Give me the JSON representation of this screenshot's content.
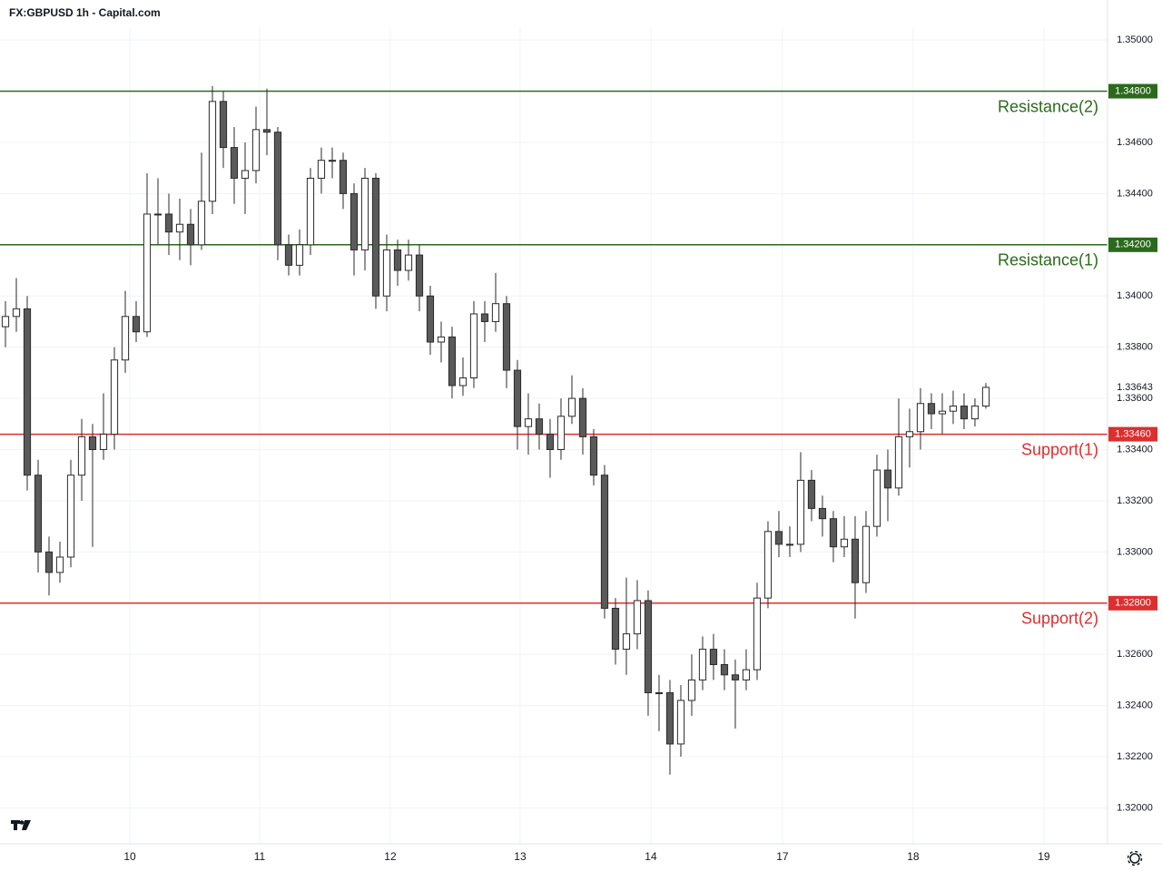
{
  "chart_data": {
    "type": "candlestick",
    "title": "FX:GBPUSD 1h - Capital.com",
    "up_color": "#ffffff",
    "down_color": "#5a5a5a",
    "wick_color": "#2a2a2a",
    "grid": true,
    "open": [
      1.3388,
      1.3392,
      1.3395,
      1.333,
      1.33,
      1.3292,
      1.3298,
      1.333,
      1.3345,
      1.334,
      1.3346,
      1.3375,
      1.3392,
      1.3386,
      1.3432,
      1.3432,
      1.3425,
      1.3428,
      1.342,
      1.3437,
      1.3476,
      1.3458,
      1.3446,
      1.3449,
      1.3465,
      1.3464,
      1.342,
      1.3412,
      1.342,
      1.3446,
      1.3453,
      1.3453,
      1.344,
      1.3418,
      1.3446,
      1.34,
      1.3418,
      1.341,
      1.3416,
      1.34,
      1.3382,
      1.3384,
      1.3365,
      1.3368,
      1.3393,
      1.339,
      1.3397,
      1.3371,
      1.3349,
      1.3352,
      1.3346,
      1.334,
      1.3353,
      1.336,
      1.3345,
      1.333,
      1.3278,
      1.3262,
      1.3268,
      1.3281,
      1.3245,
      1.3245,
      1.3225,
      1.3242,
      1.325,
      1.3262,
      1.3256,
      1.3252,
      1.325,
      1.3254,
      1.3282,
      1.3308,
      1.3303,
      1.3303,
      1.3328,
      1.3317,
      1.3313,
      1.3302,
      1.3305,
      1.3288,
      1.331,
      1.3332,
      1.3325,
      1.3345,
      1.3347,
      1.3358,
      1.3354,
      1.3355,
      1.3357,
      1.3352,
      1.3357
    ],
    "high": [
      1.3398,
      1.3407,
      1.34,
      1.3336,
      1.3306,
      1.3304,
      1.3336,
      1.3352,
      1.335,
      1.3362,
      1.338,
      1.3402,
      1.3398,
      1.3448,
      1.3446,
      1.344,
      1.3438,
      1.3434,
      1.3456,
      1.3482,
      1.348,
      1.3466,
      1.346,
      1.3474,
      1.3481,
      1.3466,
      1.3424,
      1.3426,
      1.345,
      1.3458,
      1.3458,
      1.3456,
      1.3444,
      1.345,
      1.3448,
      1.3424,
      1.3422,
      1.3422,
      1.342,
      1.3404,
      1.339,
      1.3388,
      1.3376,
      1.3398,
      1.3398,
      1.3409,
      1.34,
      1.3375,
      1.3362,
      1.3358,
      1.3352,
      1.336,
      1.3369,
      1.3364,
      1.3348,
      1.3334,
      1.3282,
      1.329,
      1.3289,
      1.3285,
      1.3252,
      1.325,
      1.3248,
      1.326,
      1.3267,
      1.3268,
      1.3262,
      1.3258,
      1.3262,
      1.3288,
      1.3312,
      1.3316,
      1.331,
      1.3339,
      1.3332,
      1.3322,
      1.3316,
      1.3314,
      1.3314,
      1.3316,
      1.3338,
      1.334,
      1.336,
      1.3356,
      1.3364,
      1.3362,
      1.3362,
      1.3363,
      1.3362,
      1.336,
      1.3366
    ],
    "low": [
      1.338,
      1.3386,
      1.3324,
      1.3292,
      1.3283,
      1.3288,
      1.3294,
      1.332,
      1.3302,
      1.3336,
      1.334,
      1.337,
      1.3382,
      1.3384,
      1.342,
      1.3416,
      1.3414,
      1.3412,
      1.3418,
      1.3432,
      1.345,
      1.3436,
      1.3432,
      1.3444,
      1.3455,
      1.3414,
      1.3408,
      1.3408,
      1.3416,
      1.344,
      1.3446,
      1.3434,
      1.3408,
      1.341,
      1.3395,
      1.3394,
      1.3404,
      1.3406,
      1.3394,
      1.3377,
      1.3374,
      1.336,
      1.3361,
      1.3364,
      1.3382,
      1.3386,
      1.3364,
      1.334,
      1.3338,
      1.334,
      1.3329,
      1.3336,
      1.335,
      1.3338,
      1.3326,
      1.3274,
      1.3256,
      1.3252,
      1.3262,
      1.3236,
      1.323,
      1.3213,
      1.322,
      1.3236,
      1.3246,
      1.325,
      1.3246,
      1.3231,
      1.3246,
      1.325,
      1.3278,
      1.3298,
      1.3298,
      1.33,
      1.3312,
      1.3306,
      1.3296,
      1.3298,
      1.3274,
      1.3284,
      1.3306,
      1.3312,
      1.3322,
      1.3333,
      1.334,
      1.3348,
      1.3346,
      1.335,
      1.3348,
      1.3349,
      1.3356
    ],
    "close": [
      1.3392,
      1.3395,
      1.333,
      1.33,
      1.3292,
      1.3298,
      1.333,
      1.3345,
      1.334,
      1.3346,
      1.3375,
      1.3392,
      1.3386,
      1.3432,
      1.3432,
      1.3425,
      1.3428,
      1.342,
      1.3437,
      1.3476,
      1.3458,
      1.3446,
      1.3449,
      1.3465,
      1.3464,
      1.342,
      1.3412,
      1.342,
      1.3446,
      1.3453,
      1.3453,
      1.344,
      1.3418,
      1.3446,
      1.34,
      1.3418,
      1.341,
      1.3416,
      1.34,
      1.3382,
      1.3384,
      1.3365,
      1.3368,
      1.3393,
      1.339,
      1.3397,
      1.3371,
      1.3349,
      1.3352,
      1.3346,
      1.334,
      1.3353,
      1.336,
      1.3345,
      1.333,
      1.3278,
      1.3262,
      1.3268,
      1.3281,
      1.3245,
      1.3245,
      1.3225,
      1.3242,
      1.325,
      1.3262,
      1.3256,
      1.3252,
      1.325,
      1.3254,
      1.3282,
      1.3308,
      1.3303,
      1.3303,
      1.3328,
      1.3317,
      1.3313,
      1.3302,
      1.3305,
      1.3288,
      1.331,
      1.3332,
      1.3325,
      1.3345,
      1.3347,
      1.3358,
      1.3354,
      1.3355,
      1.3357,
      1.3352,
      1.3357,
      1.33643
    ],
    "xlim": [
      -0.5,
      101.17
    ],
    "xticks": [
      {
        "value": 11.42,
        "label": "10"
      },
      {
        "value": 23.33,
        "label": "11"
      },
      {
        "value": 35.33,
        "label": "12"
      },
      {
        "value": 47.25,
        "label": "13"
      },
      {
        "value": 59.25,
        "label": "14"
      },
      {
        "value": 71.33,
        "label": "17"
      },
      {
        "value": 83.33,
        "label": "18"
      },
      {
        "value": 95.33,
        "label": "19"
      }
    ],
    "ylim": [
      1.3186,
      1.3505
    ],
    "yticks": [
      {
        "value": 1.32,
        "label": "1.32000"
      },
      {
        "value": 1.322,
        "label": "1.32200"
      },
      {
        "value": 1.324,
        "label": "1.32400"
      },
      {
        "value": 1.326,
        "label": "1.32600"
      },
      {
        "value": 1.328,
        "label": "1.32800"
      },
      {
        "value": 1.33,
        "label": "1.33000"
      },
      {
        "value": 1.332,
        "label": "1.33200"
      },
      {
        "value": 1.334,
        "label": "1.33400"
      },
      {
        "value": 1.336,
        "label": "1.33600"
      },
      {
        "value": 1.338,
        "label": "1.33800"
      },
      {
        "value": 1.34,
        "label": "1.34000"
      },
      {
        "value": 1.342,
        "label": "1.34200"
      },
      {
        "value": 1.344,
        "label": "1.34400"
      },
      {
        "value": 1.346,
        "label": "1.34600"
      },
      {
        "value": 1.348,
        "label": "1.34800"
      },
      {
        "value": 1.35,
        "label": "1.35000"
      }
    ],
    "levels": [
      {
        "name": "Resistance(2)",
        "price": {
          "value": 1.348,
          "label": "1.34800"
        },
        "color": "#2b6a1c"
      },
      {
        "name": "Resistance(1)",
        "price": {
          "value": 1.342,
          "label": "1.34200"
        },
        "color": "#2b6a1c"
      },
      {
        "name": "Support(1)",
        "price": {
          "value": 1.3346,
          "label": "1.33460"
        },
        "color": "#dc2f2f"
      },
      {
        "name": "Support(2)",
        "price": {
          "value": 1.328,
          "label": "1.32800"
        },
        "color": "#dc2f2f"
      }
    ],
    "last_price": 1.33643
  }
}
